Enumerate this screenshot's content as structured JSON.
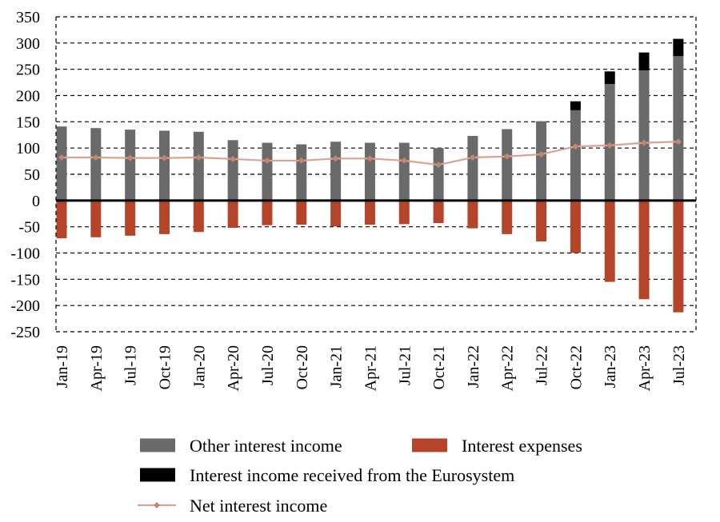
{
  "chart_data": {
    "type": "bar",
    "title": "",
    "xlabel": "",
    "ylabel": "",
    "ylim": [
      -250,
      350
    ],
    "yticks": [
      350,
      300,
      250,
      200,
      150,
      100,
      50,
      0,
      -50,
      -100,
      -150,
      -200,
      -250
    ],
    "grid": true,
    "legend_position": "bottom",
    "categories": [
      "Jan-19",
      "Apr-19",
      "Jul-19",
      "Oct-19",
      "Jan-20",
      "Apr-20",
      "Jul-20",
      "Oct-20",
      "Jan-21",
      "Apr-21",
      "Jul-21",
      "Oct-21",
      "Jan-22",
      "Apr-22",
      "Jul-22",
      "Oct-22",
      "Jan-23",
      "Apr-23",
      "Jul-23"
    ],
    "series": [
      {
        "name": "Other interest income",
        "kind": "bar-stacked",
        "color": "#6a6a6a",
        "values": [
          141,
          138,
          135,
          133,
          131,
          115,
          110,
          107,
          112,
          110,
          110,
          100,
          123,
          136,
          151,
          172,
          222,
          248,
          275
        ]
      },
      {
        "name": "Interest income received from the Eurosystem",
        "kind": "bar-stacked",
        "color": "#000000",
        "values": [
          0,
          0,
          0,
          0,
          0,
          0,
          0,
          0,
          0,
          0,
          0,
          0,
          0,
          0,
          0,
          17,
          24,
          34,
          33
        ]
      },
      {
        "name": "Interest expenses",
        "kind": "bar",
        "color": "#b5452a",
        "values": [
          -72,
          -70,
          -67,
          -64,
          -60,
          -52,
          -47,
          -46,
          -49,
          -46,
          -45,
          -43,
          -53,
          -64,
          -78,
          -100,
          -155,
          -188,
          -213
        ]
      },
      {
        "name": "Net interest income",
        "kind": "line",
        "color": "#d9a393",
        "marker_color": "#c9846d",
        "values": [
          82,
          82,
          81,
          81,
          82,
          79,
          76,
          76,
          80,
          80,
          76,
          68,
          82,
          84,
          88,
          103,
          105,
          110,
          112
        ]
      }
    ],
    "legend": [
      [
        "Other interest income",
        "Interest expenses"
      ],
      [
        "Interest income received from the Eurosystem"
      ],
      [
        "Net interest income"
      ]
    ]
  }
}
